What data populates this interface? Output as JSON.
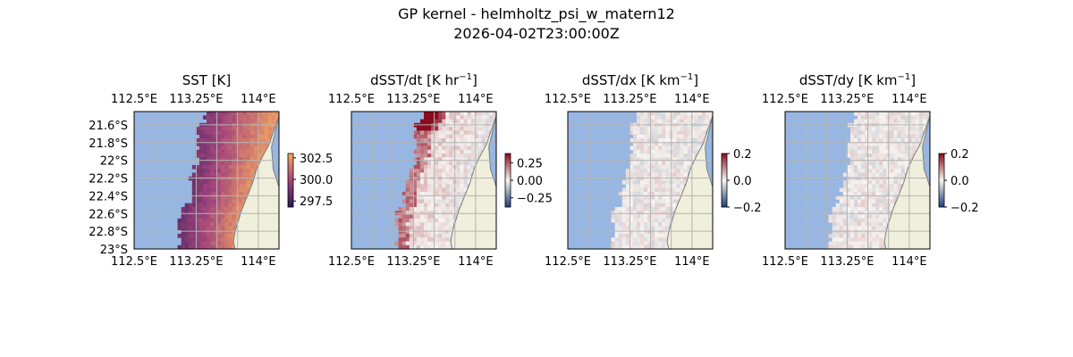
{
  "figure": {
    "title_line1": "GP kernel - helmholtz_psi_w_matern12",
    "title_line2": "2026-04-02T23:00:00Z"
  },
  "colors": {
    "ocean": "#97b6e2",
    "land": "#efefdb",
    "coast": "#7d7d7d",
    "grid": "#b4b4b4",
    "sst_low": "#2a1858",
    "sst_mid": "#a3457c",
    "sst_high": "#f7a95f",
    "diverging_neg": "#1f3f7a",
    "diverging_zero": "#f7f4f0",
    "diverging_pos": "#8c0a1e"
  },
  "chart_data": [
    {
      "type": "heatmap",
      "title": "SST [K]",
      "x_ticks": [
        "112.5°E",
        "113.25°E",
        "114°E"
      ],
      "y_ticks": [
        "21.6°S",
        "21.8°S",
        "22°S",
        "22.2°S",
        "22.4°S",
        "22.6°S",
        "22.8°S",
        "23°S"
      ],
      "show_y_ticks": true,
      "xlim": [
        112.5,
        114.25
      ],
      "ylim": [
        -23.0,
        -21.45
      ],
      "colorbar": {
        "ticks": [
          "302.5",
          "300.0",
          "297.5"
        ],
        "values": [
          302.5,
          300.0,
          297.5
        ],
        "range": [
          296.8,
          303.0
        ],
        "cmap": "sequential"
      },
      "field": "sst"
    },
    {
      "type": "heatmap",
      "title": "dSST/dt [K hr",
      "title_sup": "−1",
      "title_end": "]",
      "x_ticks": [
        "112.5°E",
        "113.25°E",
        "114°E"
      ],
      "show_y_ticks": false,
      "xlim": [
        112.5,
        114.25
      ],
      "ylim": [
        -23.0,
        -21.45
      ],
      "colorbar": {
        "ticks": [
          "0.25",
          "0.00",
          "−0.25"
        ],
        "values": [
          0.25,
          0.0,
          -0.25
        ],
        "range": [
          -0.38,
          0.38
        ],
        "cmap": "diverging"
      },
      "field": "dt"
    },
    {
      "type": "heatmap",
      "title": "dSST/dx [K km",
      "title_sup": "−1",
      "title_end": "]",
      "x_ticks": [
        "112.5°E",
        "113.25°E",
        "114°E"
      ],
      "show_y_ticks": false,
      "xlim": [
        112.5,
        114.25
      ],
      "ylim": [
        -23.0,
        -21.45
      ],
      "colorbar": {
        "ticks": [
          "0.2",
          "0.0",
          "−0.2"
        ],
        "values": [
          0.2,
          0.0,
          -0.2
        ],
        "range": [
          -0.2,
          0.2
        ],
        "cmap": "diverging"
      },
      "field": "dx"
    },
    {
      "type": "heatmap",
      "title": "dSST/dy [K km",
      "title_sup": "−1",
      "title_end": "]",
      "x_ticks": [
        "112.5°E",
        "113.25°E",
        "114°E"
      ],
      "show_y_ticks": false,
      "xlim": [
        112.5,
        114.25
      ],
      "ylim": [
        -23.0,
        -21.45
      ],
      "colorbar": {
        "ticks": [
          "0.2",
          "0.0",
          "−0.2"
        ],
        "values": [
          0.2,
          0.0,
          -0.2
        ],
        "range": [
          -0.2,
          0.2
        ],
        "cmap": "diverging"
      },
      "field": "dy"
    }
  ]
}
